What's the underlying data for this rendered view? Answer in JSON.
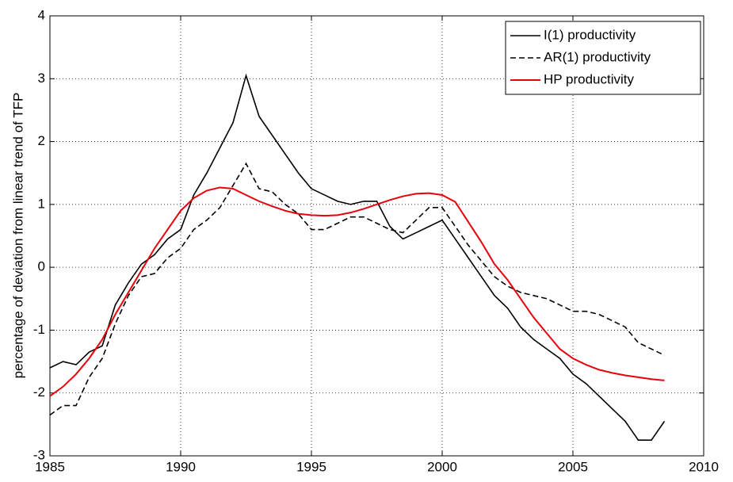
{
  "chart_data": {
    "type": "line",
    "y_label": "percentage of deviation from linear trend of TFP",
    "x": [
      1985,
      1985.5,
      1986,
      1986.5,
      1987,
      1987.5,
      1988,
      1988.5,
      1989,
      1989.5,
      1990,
      1990.5,
      1991,
      1991.5,
      1992,
      1992.5,
      1993,
      1993.5,
      1994,
      1994.5,
      1995,
      1995.5,
      1996,
      1996.5,
      1997,
      1997.5,
      1998,
      1998.5,
      1999,
      1999.5,
      2000,
      2000.5,
      2001,
      2001.5,
      2002,
      2002.5,
      2003,
      2003.5,
      2004,
      2004.5,
      2005,
      2005.5,
      2006,
      2006.5,
      2007,
      2007.5,
      2008,
      2008.5
    ],
    "series": [
      {
        "name": "I(1) productivity",
        "color": "#000000",
        "linestyle": "solid",
        "values": [
          -1.6,
          -1.5,
          -1.55,
          -1.35,
          -1.25,
          -0.6,
          -0.25,
          0.05,
          0.2,
          0.45,
          0.6,
          1.15,
          1.5,
          1.9,
          2.3,
          3.05,
          2.4,
          2.1,
          1.8,
          1.5,
          1.25,
          1.15,
          1.05,
          1.0,
          1.05,
          1.05,
          0.65,
          0.45,
          0.55,
          0.65,
          0.75,
          0.45,
          0.15,
          -0.15,
          -0.45,
          -0.65,
          -0.95,
          -1.15,
          -1.3,
          -1.45,
          -1.7,
          -1.85,
          -2.05,
          -2.25,
          -2.45,
          -2.75,
          -2.75,
          -2.45
        ]
      },
      {
        "name": "AR(1) productivity",
        "color": "#000000",
        "linestyle": "dashed",
        "values": [
          -2.35,
          -2.2,
          -2.2,
          -1.75,
          -1.45,
          -0.9,
          -0.45,
          -0.15,
          -0.1,
          0.15,
          0.3,
          0.6,
          0.75,
          0.95,
          1.3,
          1.65,
          1.25,
          1.2,
          1.0,
          0.85,
          0.6,
          0.6,
          0.7,
          0.8,
          0.8,
          0.7,
          0.6,
          0.55,
          0.75,
          0.95,
          0.95,
          0.65,
          0.35,
          0.1,
          -0.15,
          -0.3,
          -0.4,
          -0.45,
          -0.5,
          -0.6,
          -0.7,
          -0.7,
          -0.75,
          -0.85,
          -0.95,
          -1.2,
          -1.3,
          -1.4
        ]
      },
      {
        "name": "HP productivity",
        "color": "#e8000b",
        "linestyle": "solid",
        "values": [
          -2.05,
          -1.9,
          -1.7,
          -1.45,
          -1.15,
          -0.75,
          -0.4,
          -0.05,
          0.3,
          0.6,
          0.9,
          1.1,
          1.22,
          1.27,
          1.25,
          1.15,
          1.05,
          0.97,
          0.9,
          0.85,
          0.83,
          0.82,
          0.83,
          0.87,
          0.93,
          1.0,
          1.07,
          1.13,
          1.17,
          1.18,
          1.15,
          1.04,
          0.72,
          0.4,
          0.05,
          -0.2,
          -0.5,
          -0.8,
          -1.05,
          -1.3,
          -1.45,
          -1.55,
          -1.63,
          -1.68,
          -1.72,
          -1.75,
          -1.78,
          -1.8
        ]
      }
    ],
    "xlim": [
      1985,
      2010
    ],
    "xticks": [
      1985,
      1990,
      1995,
      2000,
      2005,
      2010
    ],
    "ylim": [
      -3,
      4
    ],
    "yticks": [
      -3,
      -2,
      -1,
      0,
      1,
      2,
      3,
      4
    ],
    "grid": true,
    "legend": "upper right"
  }
}
